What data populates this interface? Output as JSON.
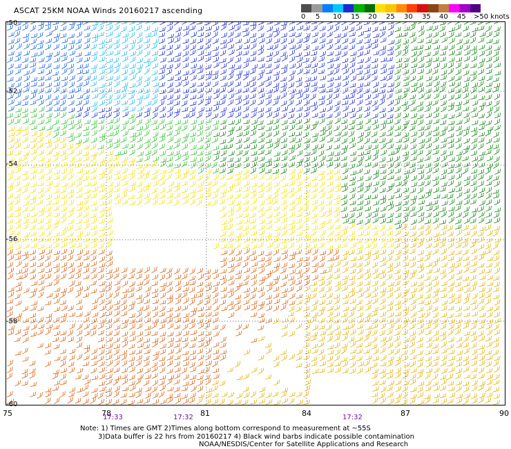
{
  "title": "ASCAT 25KM NOAA Winds 20160217 ascending",
  "legend": {
    "labels": [
      "0",
      "5",
      "10",
      "15",
      "20",
      "25",
      "30",
      "35",
      "40",
      "45",
      ">50 knots"
    ],
    "colors": [
      "#4d4d4d",
      "#9a9a9a",
      "#0080ff",
      "#00c8ff",
      "#1a2ad6",
      "#00b000",
      "#007000",
      "#ffe000",
      "#ffc400",
      "#ff8c00",
      "#ff4000",
      "#d81010",
      "#8b4513",
      "#c08040",
      "#ff00ff",
      "#a000c8",
      "#500080"
    ]
  },
  "lat_labels": [
    "-50",
    "-52",
    "-54",
    "-56",
    "-58",
    "-60"
  ],
  "lon_labels": [
    "75",
    "78",
    "81",
    "84",
    "87",
    "90"
  ],
  "pass_times": [
    "17:33",
    "17:32",
    "17:32"
  ],
  "notes": [
    "Note: 1) Times are GMT 2)Times along bottom correspond to measurement at ~55S",
    "3)Data buffer is 22 hrs from 20160217 4) Black wind barbs indicate possible contamination",
    "NOAA/NESDIS/Center for Satellite Applications and Research"
  ]
}
